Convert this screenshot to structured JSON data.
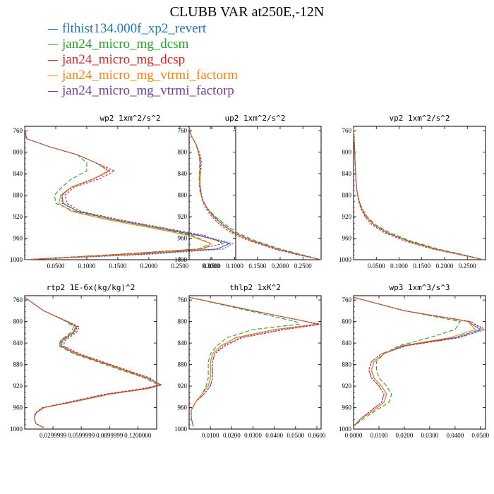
{
  "title": "CLUBB VAR at250E,-12N",
  "legend": [
    {
      "name": "flthist134.000f_xp2_revert",
      "color": "#1f77b4"
    },
    {
      "name": "jan24_micro_mg_dcsm",
      "color": "#2ca02c"
    },
    {
      "name": "jan24_micro_mg_dcsp",
      "color": "#d62728"
    },
    {
      "name": "jan24_micro_mg_vtrmi_factorm",
      "color": "#ff7f0e"
    },
    {
      "name": "jan24_micro_mg_vtrmi_factorp",
      "color": "#6f3f98"
    }
  ],
  "chart_data": [
    {
      "type": "line",
      "title": "wp2  1xm^2/s^2",
      "xlim": [
        0.0,
        0.34
      ],
      "ylim": [
        1000,
        752
      ],
      "yticks": [
        760,
        800,
        840,
        880,
        920,
        960,
        1000
      ],
      "xticks": [
        0.05,
        0.1,
        0.15,
        0.2,
        0.25,
        0.3
      ],
      "xticklabels": [
        "0.0500",
        "0.1000",
        "0.1500",
        "0.2000",
        "0.2500",
        "0.3000"
      ],
      "y": [
        755,
        775,
        790,
        805,
        820,
        835,
        850,
        865,
        880,
        895,
        910,
        925,
        940,
        955,
        970,
        980,
        990,
        1000
      ],
      "series": [
        {
          "name": "flthist134.000f_xp2_revert",
          "x": [
            0.0,
            0.003,
            0.04,
            0.085,
            0.115,
            0.135,
            0.11,
            0.075,
            0.06,
            0.062,
            0.085,
            0.14,
            0.21,
            0.28,
            0.33,
            0.31,
            0.18,
            0.0
          ]
        },
        {
          "name": "jan24_micro_mg_dcsm",
          "x": [
            0.0,
            0.003,
            0.04,
            0.085,
            0.1,
            0.1,
            0.075,
            0.06,
            0.048,
            0.05,
            0.08,
            0.14,
            0.21,
            0.27,
            0.3,
            0.28,
            0.15,
            0.0
          ]
        },
        {
          "name": "jan24_micro_mg_dcsp",
          "x": [
            0.0,
            0.003,
            0.04,
            0.085,
            0.115,
            0.145,
            0.12,
            0.08,
            0.065,
            0.068,
            0.09,
            0.15,
            0.22,
            0.29,
            0.32,
            0.28,
            0.15,
            0.0
          ]
        },
        {
          "name": "jan24_micro_mg_vtrmi_factorm",
          "x": [
            0.0,
            0.003,
            0.04,
            0.085,
            0.115,
            0.135,
            0.11,
            0.075,
            0.058,
            0.055,
            0.075,
            0.13,
            0.2,
            0.265,
            0.3,
            0.29,
            0.17,
            0.0
          ]
        },
        {
          "name": "jan24_micro_mg_vtrmi_factorp",
          "x": [
            0.0,
            0.003,
            0.04,
            0.085,
            0.115,
            0.138,
            0.112,
            0.077,
            0.06,
            0.06,
            0.085,
            0.145,
            0.215,
            0.285,
            0.335,
            0.32,
            0.2,
            0.0
          ]
        }
      ]
    },
    {
      "type": "line",
      "title": "up2  1xm^2/s^2",
      "xlim": [
        0.0,
        0.29
      ],
      "ylim": [
        1000,
        752
      ],
      "yticks": [
        760,
        800,
        840,
        880,
        920,
        960,
        1000
      ],
      "xticks": [
        0.05,
        0.1,
        0.15,
        0.2,
        0.25
      ],
      "xticklabels": [
        "0.0500",
        "0.1000",
        "0.1500",
        "0.2000",
        "0.2500"
      ],
      "y": [
        755,
        770,
        785,
        800,
        815,
        830,
        845,
        860,
        875,
        890,
        905,
        920,
        935,
        950,
        965,
        980,
        990,
        1000
      ],
      "series": [
        {
          "name": "flthist134.000f_xp2_revert",
          "x": [
            0.0,
            0.005,
            0.015,
            0.02,
            0.024,
            0.024,
            0.023,
            0.023,
            0.025,
            0.03,
            0.04,
            0.055,
            0.075,
            0.1,
            0.14,
            0.195,
            0.24,
            0.29
          ]
        },
        {
          "name": "jan24_micro_mg_dcsm",
          "x": [
            0.0,
            0.005,
            0.015,
            0.02,
            0.023,
            0.023,
            0.022,
            0.022,
            0.024,
            0.03,
            0.041,
            0.058,
            0.08,
            0.106,
            0.146,
            0.2,
            0.245,
            0.29
          ]
        },
        {
          "name": "jan24_micro_mg_dcsp",
          "x": [
            0.0,
            0.005,
            0.015,
            0.022,
            0.027,
            0.026,
            0.024,
            0.024,
            0.026,
            0.029,
            0.037,
            0.05,
            0.068,
            0.092,
            0.132,
            0.188,
            0.234,
            0.29
          ]
        },
        {
          "name": "jan24_micro_mg_vtrmi_factorm",
          "x": [
            0.0,
            0.005,
            0.015,
            0.02,
            0.024,
            0.024,
            0.023,
            0.023,
            0.025,
            0.03,
            0.04,
            0.054,
            0.074,
            0.099,
            0.139,
            0.194,
            0.24,
            0.29
          ]
        },
        {
          "name": "jan24_micro_mg_vtrmi_factorp",
          "x": [
            0.0,
            0.005,
            0.015,
            0.021,
            0.025,
            0.025,
            0.024,
            0.024,
            0.026,
            0.031,
            0.04,
            0.054,
            0.073,
            0.097,
            0.137,
            0.192,
            0.238,
            0.29
          ]
        }
      ]
    },
    {
      "type": "line",
      "title": "vp2  1xm^2/s^2",
      "xlim": [
        0.0,
        0.29
      ],
      "ylim": [
        1000,
        752
      ],
      "yticks": [
        760,
        800,
        840,
        880,
        920,
        960,
        1000
      ],
      "xticks": [
        0.05,
        0.1,
        0.15,
        0.2,
        0.25
      ],
      "xticklabels": [
        "0.0500",
        "0.1000",
        "0.1500",
        "0.2000",
        "0.2500"
      ],
      "y": [
        755,
        770,
        790,
        810,
        830,
        850,
        870,
        890,
        905,
        920,
        935,
        950,
        965,
        980,
        990,
        1000
      ],
      "series": [
        {
          "name": "flthist134.000f_xp2_revert",
          "x": [
            0.0,
            0.001,
            0.002,
            0.003,
            0.004,
            0.005,
            0.007,
            0.012,
            0.018,
            0.028,
            0.045,
            0.075,
            0.12,
            0.18,
            0.235,
            0.285
          ]
        },
        {
          "name": "jan24_micro_mg_dcsm",
          "x": [
            0.0,
            0.001,
            0.002,
            0.003,
            0.004,
            0.005,
            0.007,
            0.012,
            0.019,
            0.03,
            0.048,
            0.08,
            0.125,
            0.185,
            0.238,
            0.285
          ]
        },
        {
          "name": "jan24_micro_mg_dcsp",
          "x": [
            0.0,
            0.001,
            0.002,
            0.003,
            0.004,
            0.005,
            0.007,
            0.011,
            0.016,
            0.025,
            0.04,
            0.068,
            0.112,
            0.173,
            0.23,
            0.285
          ]
        },
        {
          "name": "jan24_micro_mg_vtrmi_factorm",
          "x": [
            0.0,
            0.001,
            0.002,
            0.003,
            0.004,
            0.005,
            0.007,
            0.012,
            0.018,
            0.028,
            0.045,
            0.074,
            0.119,
            0.179,
            0.234,
            0.285
          ]
        },
        {
          "name": "jan24_micro_mg_vtrmi_factorp",
          "x": [
            0.0,
            0.001,
            0.002,
            0.003,
            0.004,
            0.005,
            0.007,
            0.012,
            0.017,
            0.027,
            0.044,
            0.073,
            0.118,
            0.178,
            0.233,
            0.285
          ]
        }
      ]
    },
    {
      "type": "line",
      "title": "rtp2  1E-6x(kg/kg)^2",
      "xlim": [
        0.0,
        0.14
      ],
      "ylim": [
        1000,
        752
      ],
      "yticks": [
        760,
        800,
        840,
        880,
        920,
        960,
        1000
      ],
      "xticks": [
        0.03,
        0.06,
        0.09,
        0.12
      ],
      "xticklabels": [
        "0.0299999",
        "0.0599999",
        "0.0899999",
        "0.1200000"
      ],
      "y": [
        755,
        780,
        800,
        810,
        820,
        835,
        845,
        860,
        875,
        890,
        905,
        918,
        925,
        935,
        950,
        960,
        970,
        980,
        990,
        997
      ],
      "series": [
        {
          "name": "flthist134.000f_xp2_revert",
          "x": [
            0.0,
            0.02,
            0.045,
            0.055,
            0.052,
            0.04,
            0.038,
            0.055,
            0.08,
            0.105,
            0.13,
            0.145,
            0.13,
            0.09,
            0.05,
            0.02,
            0.012,
            0.01,
            0.012,
            0.02
          ]
        },
        {
          "name": "jan24_micro_mg_dcsm",
          "x": [
            0.0,
            0.02,
            0.044,
            0.052,
            0.049,
            0.038,
            0.036,
            0.052,
            0.077,
            0.102,
            0.127,
            0.142,
            0.128,
            0.089,
            0.049,
            0.02,
            0.012,
            0.01,
            0.012,
            0.02
          ]
        },
        {
          "name": "jan24_micro_mg_dcsp",
          "x": [
            0.0,
            0.02,
            0.046,
            0.058,
            0.055,
            0.043,
            0.041,
            0.058,
            0.083,
            0.108,
            0.133,
            0.143,
            0.124,
            0.085,
            0.046,
            0.019,
            0.011,
            0.01,
            0.012,
            0.02
          ]
        },
        {
          "name": "jan24_micro_mg_vtrmi_factorm",
          "x": [
            0.0,
            0.02,
            0.045,
            0.054,
            0.051,
            0.039,
            0.037,
            0.054,
            0.079,
            0.104,
            0.129,
            0.145,
            0.131,
            0.091,
            0.051,
            0.021,
            0.012,
            0.01,
            0.012,
            0.02
          ]
        },
        {
          "name": "jan24_micro_mg_vtrmi_factorp",
          "x": [
            0.0,
            0.02,
            0.045,
            0.056,
            0.053,
            0.041,
            0.039,
            0.056,
            0.081,
            0.106,
            0.131,
            0.145,
            0.128,
            0.088,
            0.048,
            0.02,
            0.012,
            0.01,
            0.012,
            0.02
          ]
        }
      ]
    },
    {
      "type": "line",
      "title": "thlp2  1xK^2",
      "xlim": [
        0.0,
        0.062
      ],
      "ylim": [
        1000,
        752
      ],
      "yticks": [
        760,
        800,
        840,
        880,
        920,
        960,
        1000
      ],
      "xticks": [
        0.01,
        0.02,
        0.03,
        0.04,
        0.05,
        0.06
      ],
      "xticklabels": [
        "0.0100",
        "0.0200",
        "0.0300",
        "0.0400",
        "0.0500",
        "0.0600"
      ],
      "y": [
        755,
        780,
        800,
        805,
        815,
        830,
        845,
        860,
        875,
        890,
        905,
        920,
        935,
        950,
        965,
        980,
        995
      ],
      "series": [
        {
          "name": "flthist134.000f_xp2_revert",
          "x": [
            0.0,
            0.03,
            0.055,
            0.06,
            0.04,
            0.022,
            0.015,
            0.011,
            0.01,
            0.01,
            0.01,
            0.009,
            0.006,
            0.003,
            0.001,
            0.001,
            0.002
          ]
        },
        {
          "name": "jan24_micro_mg_dcsm",
          "x": [
            0.0,
            0.028,
            0.05,
            0.052,
            0.03,
            0.018,
            0.013,
            0.01,
            0.009,
            0.009,
            0.009,
            0.008,
            0.006,
            0.003,
            0.001,
            0.001,
            0.002
          ]
        },
        {
          "name": "jan24_micro_mg_dcsp",
          "x": [
            0.0,
            0.03,
            0.055,
            0.062,
            0.045,
            0.025,
            0.017,
            0.012,
            0.011,
            0.011,
            0.011,
            0.01,
            0.007,
            0.003,
            0.001,
            0.001,
            0.002
          ]
        },
        {
          "name": "jan24_micro_mg_vtrmi_factorm",
          "x": [
            0.0,
            0.03,
            0.055,
            0.06,
            0.04,
            0.022,
            0.015,
            0.011,
            0.01,
            0.01,
            0.01,
            0.009,
            0.006,
            0.003,
            0.001,
            0.001,
            0.002
          ]
        },
        {
          "name": "jan24_micro_mg_vtrmi_factorp",
          "x": [
            0.0,
            0.03,
            0.055,
            0.061,
            0.043,
            0.024,
            0.016,
            0.012,
            0.011,
            0.011,
            0.011,
            0.01,
            0.007,
            0.003,
            0.001,
            0.001,
            0.002
          ]
        }
      ]
    },
    {
      "type": "line",
      "title": "wp3  1xm^3/s^3",
      "xlim": [
        0.0,
        0.052
      ],
      "ylim": [
        1000,
        752
      ],
      "yticks": [
        760,
        800,
        840,
        880,
        920,
        960,
        1000
      ],
      "xticks": [
        0.0,
        0.01,
        0.02,
        0.03,
        0.04,
        0.05
      ],
      "xticklabels": [
        "0.0000",
        "0.0100",
        "0.0200",
        "0.0300",
        "0.0400",
        "0.0500"
      ],
      "y": [
        755,
        780,
        800,
        815,
        830,
        845,
        860,
        875,
        890,
        905,
        920,
        935,
        950,
        965,
        980,
        995
      ],
      "series": [
        {
          "name": "flthist134.000f_xp2_revert",
          "x": [
            0.0,
            0.02,
            0.045,
            0.05,
            0.04,
            0.02,
            0.012,
            0.008,
            0.007,
            0.008,
            0.011,
            0.013,
            0.012,
            0.008,
            0.003,
            0.0
          ]
        },
        {
          "name": "jan24_micro_mg_dcsm",
          "x": [
            0.0,
            0.02,
            0.042,
            0.04,
            0.03,
            0.018,
            0.012,
            0.009,
            0.009,
            0.01,
            0.013,
            0.015,
            0.014,
            0.009,
            0.004,
            0.0
          ]
        },
        {
          "name": "jan24_micro_mg_dcsp",
          "x": [
            0.0,
            0.02,
            0.046,
            0.051,
            0.042,
            0.021,
            0.011,
            0.007,
            0.006,
            0.007,
            0.01,
            0.012,
            0.011,
            0.007,
            0.003,
            0.0
          ]
        },
        {
          "name": "jan24_micro_mg_vtrmi_factorm",
          "x": [
            0.0,
            0.02,
            0.045,
            0.048,
            0.038,
            0.019,
            0.012,
            0.008,
            0.007,
            0.008,
            0.011,
            0.013,
            0.012,
            0.008,
            0.003,
            0.0
          ]
        },
        {
          "name": "jan24_micro_mg_vtrmi_factorp",
          "x": [
            0.0,
            0.02,
            0.046,
            0.052,
            0.041,
            0.02,
            0.011,
            0.007,
            0.006,
            0.007,
            0.01,
            0.012,
            0.011,
            0.007,
            0.003,
            0.0
          ]
        }
      ]
    }
  ]
}
